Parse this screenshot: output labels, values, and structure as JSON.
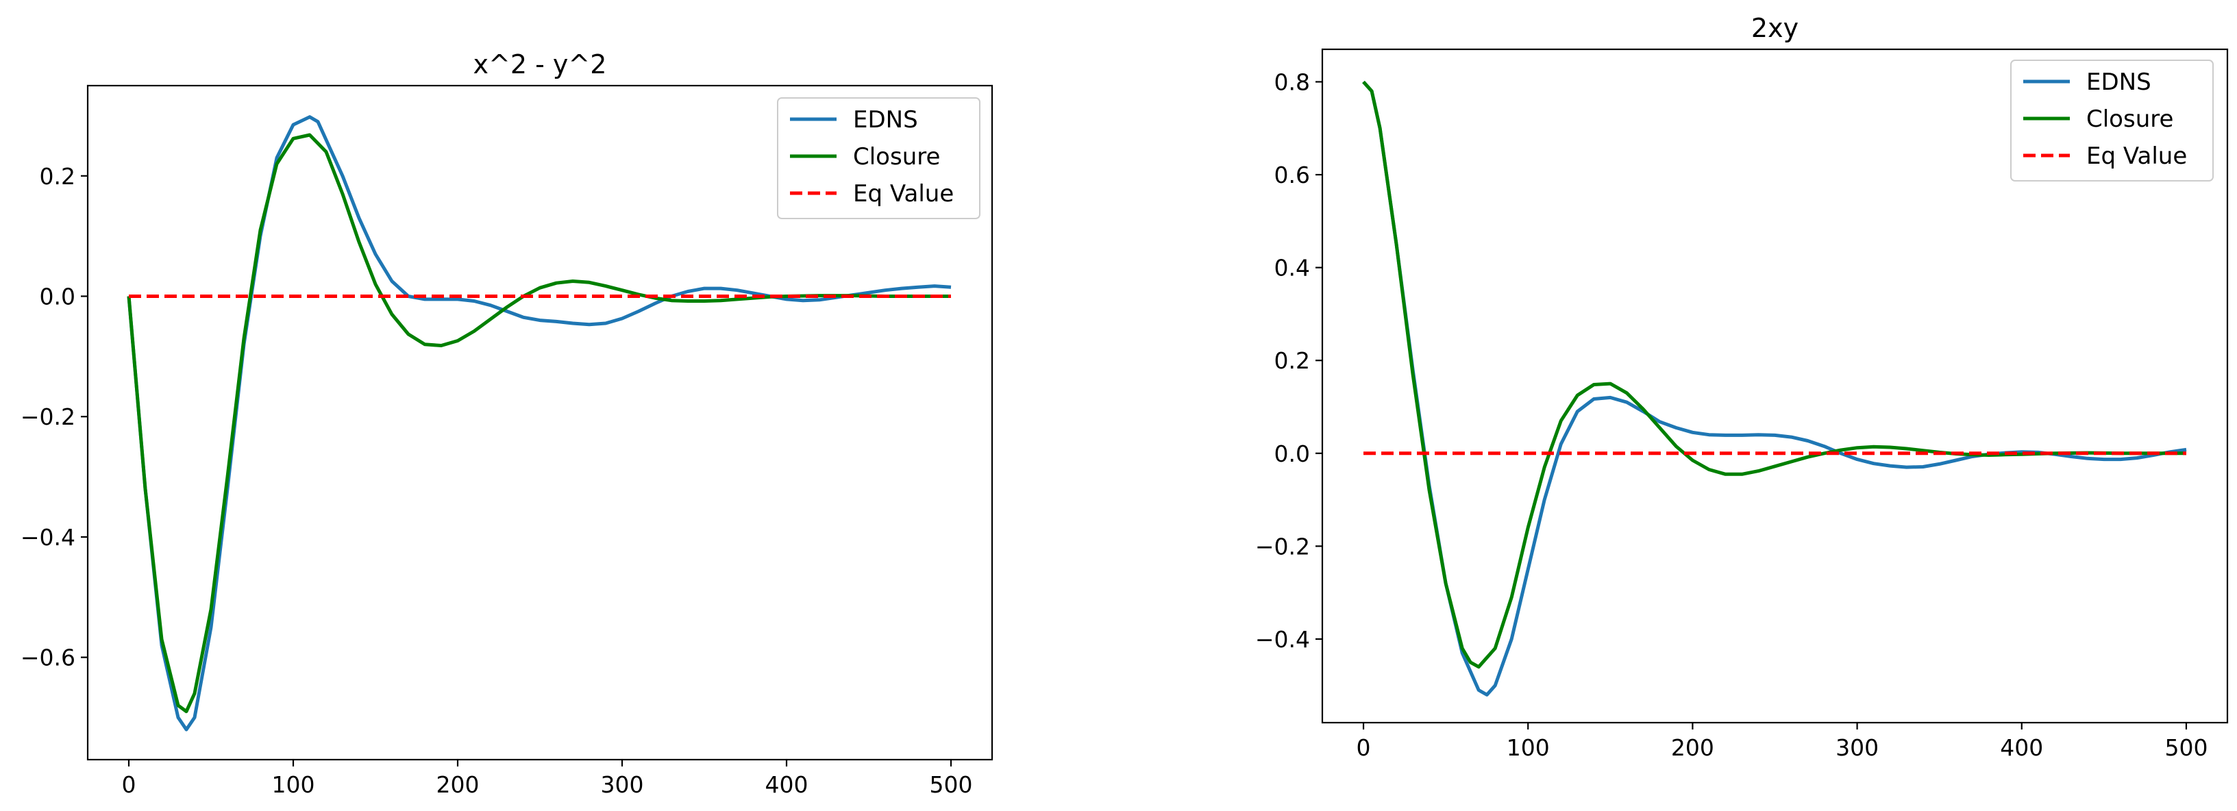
{
  "chart_data": [
    {
      "type": "line",
      "title": "x^2 - y^2",
      "xlabel": "",
      "ylabel": "",
      "xlim": [
        -25,
        525
      ],
      "ylim": [
        -0.77,
        0.35
      ],
      "xticks": [
        0,
        100,
        200,
        300,
        400,
        500
      ],
      "xtick_labels": [
        "0",
        "100",
        "200",
        "300",
        "400",
        "500"
      ],
      "yticks": [
        0.2,
        0.0,
        -0.2,
        -0.4,
        -0.6
      ],
      "ytick_labels": [
        "0.2",
        "0.0",
        "−0.2",
        "−0.4",
        "−0.6"
      ],
      "legend_position": "top-right",
      "series": [
        {
          "name": "EDNS",
          "color": "#1f77b4",
          "style": "solid",
          "x": [
            0,
            10,
            20,
            30,
            35,
            40,
            50,
            60,
            70,
            80,
            90,
            100,
            110,
            115,
            120,
            130,
            140,
            150,
            160,
            170,
            180,
            190,
            200,
            210,
            220,
            230,
            240,
            250,
            260,
            270,
            280,
            290,
            300,
            310,
            320,
            330,
            340,
            350,
            360,
            370,
            380,
            390,
            400,
            410,
            420,
            430,
            440,
            450,
            460,
            470,
            480,
            490,
            500
          ],
          "y": [
            0.0,
            -0.32,
            -0.58,
            -0.7,
            -0.72,
            -0.7,
            -0.55,
            -0.32,
            -0.08,
            0.1,
            0.23,
            0.285,
            0.298,
            0.29,
            0.26,
            0.2,
            0.13,
            0.07,
            0.025,
            0.0,
            -0.005,
            -0.005,
            -0.005,
            -0.008,
            -0.015,
            -0.025,
            -0.035,
            -0.04,
            -0.042,
            -0.045,
            -0.047,
            -0.045,
            -0.037,
            -0.025,
            -0.012,
            0.0,
            0.008,
            0.013,
            0.013,
            0.01,
            0.005,
            0.0,
            -0.005,
            -0.007,
            -0.006,
            -0.002,
            0.002,
            0.006,
            0.01,
            0.013,
            0.015,
            0.017,
            0.015
          ]
        },
        {
          "name": "Closure",
          "color": "#008000",
          "style": "solid",
          "x": [
            0,
            10,
            20,
            30,
            35,
            40,
            50,
            60,
            70,
            80,
            90,
            100,
            110,
            120,
            130,
            140,
            150,
            160,
            170,
            180,
            190,
            200,
            210,
            220,
            230,
            240,
            250,
            260,
            270,
            280,
            290,
            300,
            310,
            320,
            330,
            340,
            350,
            360,
            370,
            380,
            390,
            400,
            420,
            440,
            460,
            480,
            500
          ],
          "y": [
            0.0,
            -0.32,
            -0.57,
            -0.68,
            -0.69,
            -0.66,
            -0.52,
            -0.3,
            -0.07,
            0.11,
            0.22,
            0.262,
            0.268,
            0.24,
            0.17,
            0.09,
            0.02,
            -0.03,
            -0.063,
            -0.08,
            -0.082,
            -0.074,
            -0.058,
            -0.038,
            -0.018,
            0.0,
            0.014,
            0.022,
            0.025,
            0.023,
            0.017,
            0.01,
            0.003,
            -0.003,
            -0.007,
            -0.008,
            -0.008,
            -0.007,
            -0.005,
            -0.003,
            -0.001,
            0.0,
            0.001,
            0.001,
            0.0,
            0.0,
            0.0
          ]
        },
        {
          "name": "Eq Value",
          "color": "#ff0000",
          "style": "dashed",
          "x": [
            0,
            500
          ],
          "y": [
            0.0,
            0.0
          ]
        }
      ]
    },
    {
      "type": "line",
      "title": "2xy",
      "xlabel": "",
      "ylabel": "",
      "xlim": [
        -25,
        525
      ],
      "ylim": [
        -0.58,
        0.87
      ],
      "xticks": [
        0,
        100,
        200,
        300,
        400,
        500
      ],
      "xtick_labels": [
        "0",
        "100",
        "200",
        "300",
        "400",
        "500"
      ],
      "yticks": [
        0.8,
        0.6,
        0.4,
        0.2,
        0.0,
        -0.2,
        -0.4
      ],
      "ytick_labels": [
        "0.8",
        "0.6",
        "0.4",
        "0.2",
        "0.0",
        "−0.2",
        "−0.4"
      ],
      "legend_position": "top-right",
      "series": [
        {
          "name": "EDNS",
          "color": "#1f77b4",
          "style": "solid",
          "x": [
            0,
            5,
            10,
            20,
            30,
            40,
            50,
            60,
            70,
            75,
            80,
            90,
            100,
            110,
            120,
            130,
            140,
            150,
            160,
            170,
            180,
            190,
            200,
            210,
            220,
            230,
            240,
            250,
            260,
            270,
            280,
            290,
            300,
            310,
            320,
            330,
            340,
            350,
            360,
            370,
            380,
            390,
            400,
            410,
            420,
            430,
            440,
            450,
            460,
            470,
            480,
            490,
            500
          ],
          "y": [
            0.8,
            0.78,
            0.7,
            0.45,
            0.18,
            -0.07,
            -0.28,
            -0.43,
            -0.51,
            -0.52,
            -0.5,
            -0.4,
            -0.25,
            -0.1,
            0.02,
            0.09,
            0.117,
            0.12,
            0.11,
            0.09,
            0.068,
            0.055,
            0.045,
            0.04,
            0.039,
            0.039,
            0.04,
            0.039,
            0.035,
            0.027,
            0.015,
            0.0,
            -0.013,
            -0.022,
            -0.027,
            -0.03,
            -0.029,
            -0.023,
            -0.015,
            -0.007,
            -0.002,
            0.001,
            0.003,
            0.002,
            -0.002,
            -0.007,
            -0.011,
            -0.013,
            -0.013,
            -0.01,
            -0.004,
            0.003,
            0.008
          ]
        },
        {
          "name": "Closure",
          "color": "#008000",
          "style": "solid",
          "x": [
            0,
            5,
            10,
            20,
            30,
            40,
            50,
            60,
            65,
            70,
            80,
            90,
            100,
            110,
            120,
            130,
            140,
            150,
            160,
            170,
            180,
            190,
            200,
            210,
            220,
            230,
            240,
            250,
            260,
            270,
            280,
            290,
            300,
            310,
            320,
            330,
            340,
            350,
            360,
            370,
            380,
            390,
            400,
            420,
            440,
            460,
            480,
            500
          ],
          "y": [
            0.8,
            0.78,
            0.7,
            0.45,
            0.17,
            -0.08,
            -0.28,
            -0.42,
            -0.45,
            -0.46,
            -0.42,
            -0.31,
            -0.16,
            -0.03,
            0.07,
            0.125,
            0.148,
            0.15,
            0.13,
            0.095,
            0.055,
            0.015,
            -0.015,
            -0.035,
            -0.045,
            -0.045,
            -0.038,
            -0.028,
            -0.018,
            -0.008,
            0.0,
            0.007,
            0.012,
            0.014,
            0.013,
            0.01,
            0.006,
            0.002,
            -0.001,
            -0.003,
            -0.004,
            -0.003,
            -0.002,
            0.0,
            0.001,
            0.0,
            0.0,
            0.0
          ]
        },
        {
          "name": "Eq Value",
          "color": "#ff0000",
          "style": "dashed",
          "x": [
            0,
            500
          ],
          "y": [
            0.0,
            0.0
          ]
        }
      ]
    }
  ]
}
